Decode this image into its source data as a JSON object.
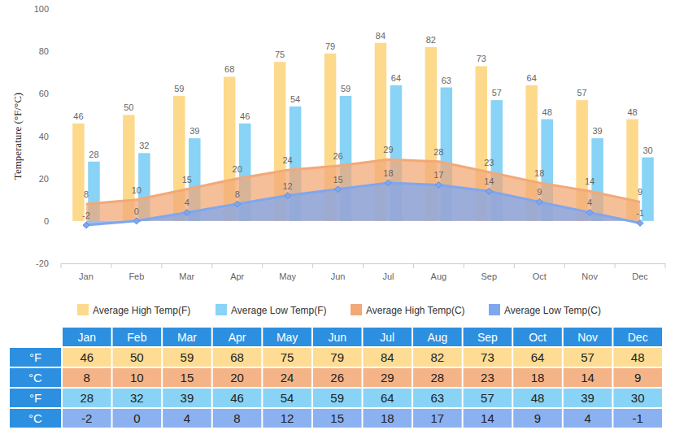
{
  "chart_data": {
    "type": "bar",
    "y_label": "Temperature (°F/°C)",
    "categories": [
      "Jan",
      "Feb",
      "Mar",
      "Apr",
      "May",
      "Jun",
      "Jul",
      "Aug",
      "Sep",
      "Oct",
      "Nov",
      "Dec"
    ],
    "series": [
      {
        "name": "Average High Temp(F)",
        "type": "bar",
        "color": "#fdd98c",
        "values": [
          46,
          50,
          59,
          68,
          75,
          79,
          84,
          82,
          73,
          64,
          57,
          48
        ]
      },
      {
        "name": "Average Low Temp(F)",
        "type": "bar",
        "color": "#88d3f6",
        "values": [
          28,
          32,
          39,
          46,
          54,
          59,
          64,
          63,
          57,
          48,
          39,
          30
        ]
      },
      {
        "name": "Average High Temp(C)",
        "type": "area",
        "color": "#f2a978",
        "values": [
          8,
          10,
          15,
          20,
          24,
          26,
          29,
          28,
          23,
          18,
          14,
          9
        ]
      },
      {
        "name": "Average Low Temp(C)",
        "type": "area",
        "color": "#7fa7ee",
        "marker": "diamond",
        "values": [
          -2,
          0,
          4,
          8,
          12,
          15,
          18,
          17,
          14,
          9,
          4,
          -1
        ]
      }
    ],
    "ylim": [
      -20,
      100
    ],
    "yticks": [
      -20,
      0,
      20,
      40,
      60,
      80,
      100
    ],
    "grid": false,
    "data_labels": true,
    "legend": "bottom"
  },
  "table": {
    "rows": [
      {
        "label": "°F",
        "color": "#fedc93",
        "values": [
          46,
          50,
          59,
          68,
          75,
          79,
          84,
          82,
          73,
          64,
          57,
          48
        ]
      },
      {
        "label": "°C",
        "color": "#f5b487",
        "values": [
          8,
          10,
          15,
          20,
          24,
          26,
          29,
          28,
          23,
          18,
          14,
          9
        ]
      },
      {
        "label": "°F",
        "color": "#89d4f6",
        "values": [
          28,
          32,
          39,
          46,
          54,
          59,
          64,
          63,
          57,
          48,
          39,
          30
        ]
      },
      {
        "label": "°C",
        "color": "#8cb1f1",
        "values": [
          -2,
          0,
          4,
          8,
          12,
          15,
          18,
          17,
          14,
          9,
          4,
          -1
        ]
      }
    ]
  }
}
